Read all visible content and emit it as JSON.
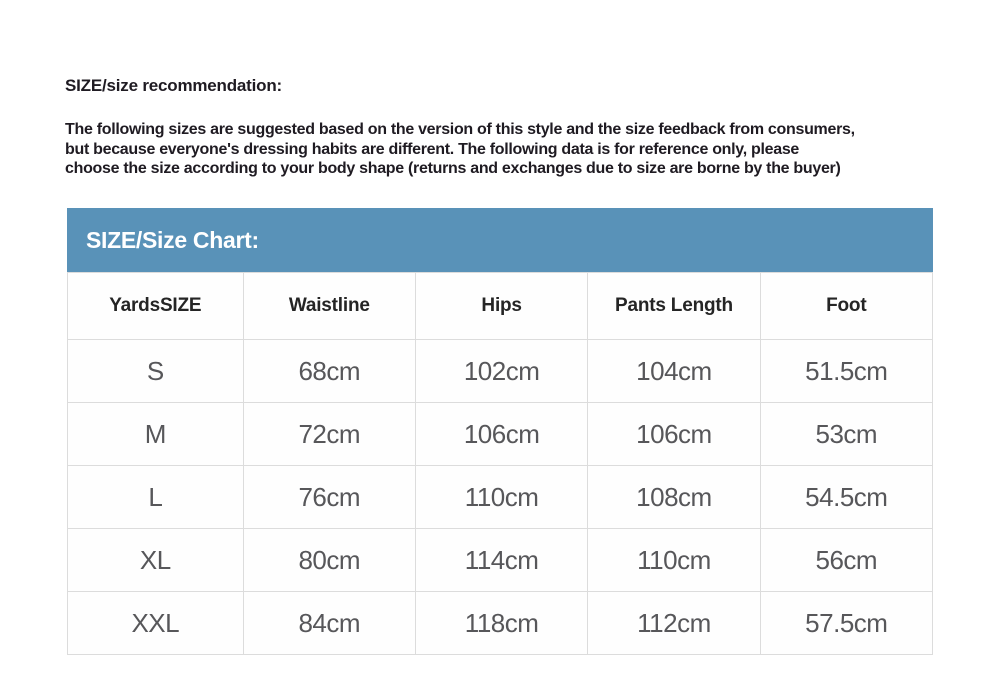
{
  "page": {
    "background": "#ffffff",
    "heading": "SIZE/size recommendation:",
    "intro_lines": [
      "The following sizes are suggested based on the version of this style and the size feedback from consumers,",
      "but because everyone's dressing habits are different. The following data is for reference only, please",
      "choose the size according to your body shape (returns and exchanges due to size are borne by the buyer)"
    ]
  },
  "size_chart": {
    "title": "SIZE/Size Chart:",
    "title_bar_color": "#5992b8",
    "title_text_color": "#ffffff",
    "border_color": "#dcdcdc",
    "column_header_text_color": "#252525",
    "data_text_color": "#57575a",
    "columns": [
      "YardsSIZE",
      "Waistline",
      "Hips",
      "Pants Length",
      "Foot"
    ],
    "rows": [
      [
        "S",
        "68cm",
        "102cm",
        "104cm",
        "51.5cm"
      ],
      [
        "M",
        "72cm",
        "106cm",
        "106cm",
        "53cm"
      ],
      [
        "L",
        "76cm",
        "110cm",
        "108cm",
        "54.5cm"
      ],
      [
        "XL",
        "80cm",
        "114cm",
        "110cm",
        "56cm"
      ],
      [
        "XXL",
        "84cm",
        "118cm",
        "112cm",
        "57.5cm"
      ]
    ]
  }
}
